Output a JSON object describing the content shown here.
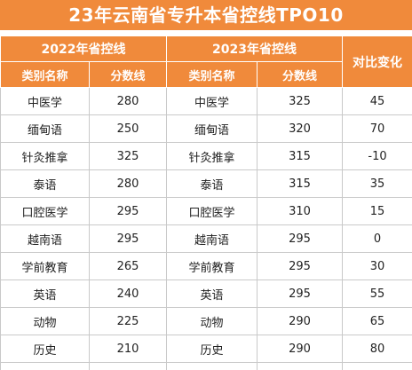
{
  "title": "23年云南省专升本省控线TPO10",
  "headers": {
    "year_2022": "2022年省控线",
    "year_2023": "2023年省控线",
    "compare": "对比变化",
    "category": "类别名称",
    "score": "分数线"
  },
  "rows": [
    {
      "cat_2022": "中医学",
      "score_2022": "280",
      "cat_2023": "中医学",
      "score_2023": "325",
      "change": "45"
    },
    {
      "cat_2022": "缅甸语",
      "score_2022": "250",
      "cat_2023": "缅甸语",
      "score_2023": "320",
      "change": "70"
    },
    {
      "cat_2022": "针灸推拿",
      "score_2022": "325",
      "cat_2023": "针灸推拿",
      "score_2023": "315",
      "change": "-10"
    },
    {
      "cat_2022": "泰语",
      "score_2022": "280",
      "cat_2023": "泰语",
      "score_2023": "315",
      "change": "35"
    },
    {
      "cat_2022": "口腔医学",
      "score_2022": "295",
      "cat_2023": "口腔医学",
      "score_2023": "310",
      "change": "15"
    },
    {
      "cat_2022": "越南语",
      "score_2022": "295",
      "cat_2023": "越南语",
      "score_2023": "295",
      "change": "0"
    },
    {
      "cat_2022": "学前教育",
      "score_2022": "265",
      "cat_2023": "学前教育",
      "score_2023": "295",
      "change": "30"
    },
    {
      "cat_2022": "英语",
      "score_2022": "240",
      "cat_2023": "英语",
      "score_2023": "295",
      "change": "55"
    },
    {
      "cat_2022": "动物",
      "score_2022": "225",
      "cat_2023": "动物",
      "score_2023": "290",
      "change": "65"
    },
    {
      "cat_2022": "历史",
      "score_2022": "210",
      "cat_2023": "历史",
      "score_2023": "290",
      "change": "80"
    }
  ],
  "colors": {
    "header_bg": "#f08a3b",
    "header_text": "#ffffff"
  }
}
